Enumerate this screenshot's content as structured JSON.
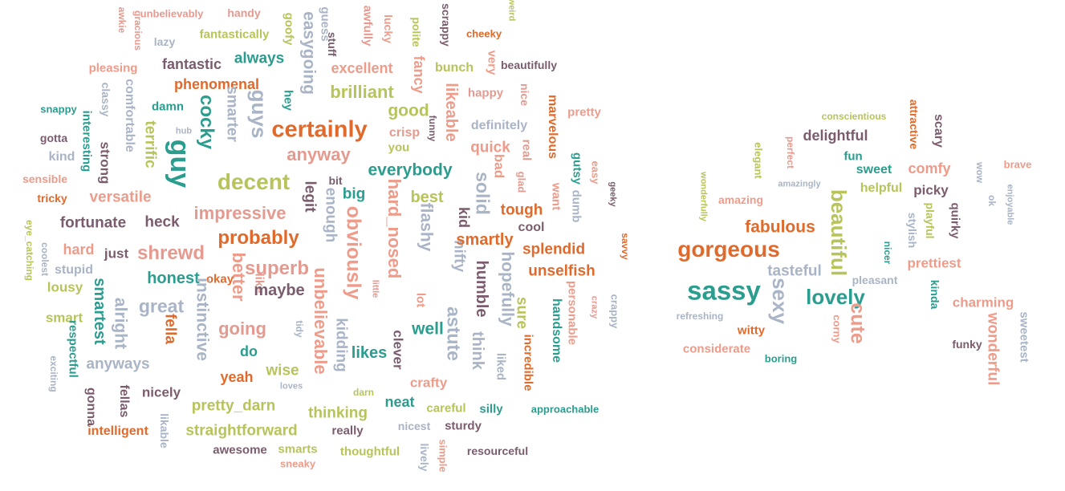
{
  "colors": {
    "teal": "#2a9d8f",
    "orange": "#e06a2c",
    "pink": "#e59a90",
    "olive": "#b8c45a",
    "plum": "#7a5c6e",
    "grey": "#a9b4c6",
    "salmon": "#ee9b8a"
  },
  "clouds": [
    {
      "name": "left-cloud",
      "words": [
        {
          "t": "awkie",
          "c": "pink"
        },
        {
          "t": "gracious",
          "c": "pink"
        },
        {
          "t": "unbelievably",
          "c": "pink"
        },
        {
          "t": "handy",
          "c": "pink"
        },
        {
          "t": "goofy",
          "c": "olive"
        },
        {
          "t": "guess",
          "c": "grey"
        },
        {
          "t": "awfully",
          "c": "pink"
        },
        {
          "t": "lucky",
          "c": "salmon"
        },
        {
          "t": "polite",
          "c": "olive"
        },
        {
          "t": "scrappy",
          "c": "plum"
        },
        {
          "t": "cheeky",
          "c": "orange"
        },
        {
          "t": "weird",
          "c": "olive"
        },
        {
          "t": "lazy",
          "c": "grey"
        },
        {
          "t": "fantastically",
          "c": "olive"
        },
        {
          "t": "easygoing",
          "c": "grey"
        },
        {
          "t": "stuff",
          "c": "plum"
        },
        {
          "t": "excellent",
          "c": "salmon"
        },
        {
          "t": "fancy",
          "c": "salmon"
        },
        {
          "t": "bunch",
          "c": "olive"
        },
        {
          "t": "very",
          "c": "salmon"
        },
        {
          "t": "beautifully",
          "c": "plum"
        },
        {
          "t": "pleasing",
          "c": "salmon"
        },
        {
          "t": "fantastic",
          "c": "plum"
        },
        {
          "t": "always",
          "c": "teal"
        },
        {
          "t": "phenomenal",
          "c": "orange"
        },
        {
          "t": "brilliant",
          "c": "olive"
        },
        {
          "t": "likeable",
          "c": "salmon"
        },
        {
          "t": "happy",
          "c": "pink"
        },
        {
          "t": "nice",
          "c": "pink"
        },
        {
          "t": "classy",
          "c": "grey"
        },
        {
          "t": "comfortable",
          "c": "grey"
        },
        {
          "t": "hey",
          "c": "teal"
        },
        {
          "t": "guys",
          "c": "grey"
        },
        {
          "t": "smarter",
          "c": "grey"
        },
        {
          "t": "cocky",
          "c": "teal"
        },
        {
          "t": "damn",
          "c": "teal"
        },
        {
          "t": "snappy",
          "c": "teal"
        },
        {
          "t": "interesting",
          "c": "teal"
        },
        {
          "t": "good",
          "c": "olive"
        },
        {
          "t": "marvelous",
          "c": "orange"
        },
        {
          "t": "pretty",
          "c": "salmon"
        },
        {
          "t": "certainly",
          "c": "orange"
        },
        {
          "t": "crisp",
          "c": "pink"
        },
        {
          "t": "funny",
          "c": "plum"
        },
        {
          "t": "definitely",
          "c": "grey"
        },
        {
          "t": "gotta",
          "c": "plum"
        },
        {
          "t": "terrific",
          "c": "olive"
        },
        {
          "t": "hub",
          "c": "grey"
        },
        {
          "t": "guy",
          "c": "teal"
        },
        {
          "t": "you",
          "c": "olive"
        },
        {
          "t": "quick",
          "c": "salmon"
        },
        {
          "t": "real",
          "c": "pink"
        },
        {
          "t": "gutsy",
          "c": "teal"
        },
        {
          "t": "easy",
          "c": "salmon"
        },
        {
          "t": "kind",
          "c": "grey"
        },
        {
          "t": "strong",
          "c": "plum"
        },
        {
          "t": "anyway",
          "c": "pink"
        },
        {
          "t": "bad",
          "c": "salmon"
        },
        {
          "t": "glad",
          "c": "pink"
        },
        {
          "t": "dumb",
          "c": "grey"
        },
        {
          "t": "sensible",
          "c": "salmon"
        },
        {
          "t": "decent",
          "c": "olive"
        },
        {
          "t": "bit",
          "c": "plum"
        },
        {
          "t": "everybody",
          "c": "teal"
        },
        {
          "t": "solid",
          "c": "grey"
        },
        {
          "t": "want",
          "c": "salmon"
        },
        {
          "t": "geeky",
          "c": "plum"
        },
        {
          "t": "tricky",
          "c": "orange"
        },
        {
          "t": "versatile",
          "c": "salmon"
        },
        {
          "t": "legit",
          "c": "plum"
        },
        {
          "t": "big",
          "c": "teal"
        },
        {
          "t": "best",
          "c": "olive"
        },
        {
          "t": "hard_nosed",
          "c": "salmon"
        },
        {
          "t": "kid",
          "c": "plum"
        },
        {
          "t": "tough",
          "c": "orange"
        },
        {
          "t": "impressive",
          "c": "pink"
        },
        {
          "t": "enough",
          "c": "grey"
        },
        {
          "t": "eye_catching",
          "c": "olive"
        },
        {
          "t": "fortunate",
          "c": "plum"
        },
        {
          "t": "heck",
          "c": "plum"
        },
        {
          "t": "obviously",
          "c": "salmon"
        },
        {
          "t": "flashy",
          "c": "grey"
        },
        {
          "t": "cool",
          "c": "plum"
        },
        {
          "t": "savvy",
          "c": "orange"
        },
        {
          "t": "coolest",
          "c": "grey"
        },
        {
          "t": "probably",
          "c": "orange"
        },
        {
          "t": "nifty",
          "c": "grey"
        },
        {
          "t": "smartly",
          "c": "orange"
        },
        {
          "t": "splendid",
          "c": "orange"
        },
        {
          "t": "hard",
          "c": "salmon"
        },
        {
          "t": "just",
          "c": "plum"
        },
        {
          "t": "shrewd",
          "c": "pink"
        },
        {
          "t": "superb",
          "c": "pink"
        },
        {
          "t": "humble",
          "c": "plum"
        },
        {
          "t": "hopefully",
          "c": "grey"
        },
        {
          "t": "unselfish",
          "c": "orange"
        },
        {
          "t": "stupid",
          "c": "grey"
        },
        {
          "t": "honest",
          "c": "teal"
        },
        {
          "t": "better",
          "c": "salmon"
        },
        {
          "t": "okay",
          "c": "orange"
        },
        {
          "t": "like",
          "c": "pink"
        },
        {
          "t": "maybe",
          "c": "plum"
        },
        {
          "t": "unbelievable",
          "c": "salmon"
        },
        {
          "t": "little",
          "c": "pink"
        },
        {
          "t": "lousy",
          "c": "olive"
        },
        {
          "t": "smartest",
          "c": "teal"
        },
        {
          "t": "instinctive",
          "c": "grey"
        },
        {
          "t": "lot",
          "c": "salmon"
        },
        {
          "t": "sure",
          "c": "olive"
        },
        {
          "t": "personable",
          "c": "salmon"
        },
        {
          "t": "crazy",
          "c": "pink"
        },
        {
          "t": "crappy",
          "c": "grey"
        },
        {
          "t": "alright",
          "c": "grey"
        },
        {
          "t": "great",
          "c": "grey"
        },
        {
          "t": "astute",
          "c": "grey"
        },
        {
          "t": "handsome",
          "c": "teal"
        },
        {
          "t": "smart",
          "c": "olive"
        },
        {
          "t": "respectful",
          "c": "teal"
        },
        {
          "t": "fella",
          "c": "orange"
        },
        {
          "t": "going",
          "c": "pink"
        },
        {
          "t": "tidy",
          "c": "grey"
        },
        {
          "t": "kidding",
          "c": "grey"
        },
        {
          "t": "well",
          "c": "teal"
        },
        {
          "t": "think",
          "c": "grey"
        },
        {
          "t": "incredible",
          "c": "orange"
        },
        {
          "t": "do",
          "c": "teal"
        },
        {
          "t": "likes",
          "c": "teal"
        },
        {
          "t": "clever",
          "c": "plum"
        },
        {
          "t": "liked",
          "c": "grey"
        },
        {
          "t": "anyways",
          "c": "grey"
        },
        {
          "t": "exciting",
          "c": "grey"
        },
        {
          "t": "yeah",
          "c": "orange"
        },
        {
          "t": "wise",
          "c": "olive"
        },
        {
          "t": "crafty",
          "c": "salmon"
        },
        {
          "t": "loves",
          "c": "grey"
        },
        {
          "t": "darn",
          "c": "olive"
        },
        {
          "t": "neat",
          "c": "teal"
        },
        {
          "t": "nicely",
          "c": "plum"
        },
        {
          "t": "gonna",
          "c": "plum"
        },
        {
          "t": "fellas",
          "c": "plum"
        },
        {
          "t": "pretty_darn",
          "c": "olive"
        },
        {
          "t": "careful",
          "c": "olive"
        },
        {
          "t": "silly",
          "c": "teal"
        },
        {
          "t": "approachable",
          "c": "teal"
        },
        {
          "t": "thinking",
          "c": "olive"
        },
        {
          "t": "likable",
          "c": "grey"
        },
        {
          "t": "intelligent",
          "c": "orange"
        },
        {
          "t": "straightforward",
          "c": "olive"
        },
        {
          "t": "nicest",
          "c": "grey"
        },
        {
          "t": "sturdy",
          "c": "plum"
        },
        {
          "t": "really",
          "c": "plum"
        },
        {
          "t": "awesome",
          "c": "plum"
        },
        {
          "t": "smarts",
          "c": "olive"
        },
        {
          "t": "thoughtful",
          "c": "olive"
        },
        {
          "t": "lively",
          "c": "grey"
        },
        {
          "t": "simple",
          "c": "salmon"
        },
        {
          "t": "resourceful",
          "c": "plum"
        },
        {
          "t": "sneaky",
          "c": "salmon"
        }
      ]
    },
    {
      "name": "right-cloud",
      "words": [
        {
          "t": "conscientious",
          "c": "olive"
        },
        {
          "t": "attractive",
          "c": "orange"
        },
        {
          "t": "scary",
          "c": "plum"
        },
        {
          "t": "elegant",
          "c": "olive"
        },
        {
          "t": "perfect",
          "c": "pink"
        },
        {
          "t": "delightful",
          "c": "plum"
        },
        {
          "t": "fun",
          "c": "teal"
        },
        {
          "t": "sweet",
          "c": "teal"
        },
        {
          "t": "comfy",
          "c": "salmon"
        },
        {
          "t": "wow",
          "c": "grey"
        },
        {
          "t": "brave",
          "c": "salmon"
        },
        {
          "t": "wonderfully",
          "c": "olive"
        },
        {
          "t": "amazing",
          "c": "salmon"
        },
        {
          "t": "amazingly",
          "c": "grey"
        },
        {
          "t": "helpful",
          "c": "olive"
        },
        {
          "t": "picky",
          "c": "plum"
        },
        {
          "t": "ok",
          "c": "grey"
        },
        {
          "t": "enjoyable",
          "c": "grey"
        },
        {
          "t": "beautiful",
          "c": "olive"
        },
        {
          "t": "playful",
          "c": "olive"
        },
        {
          "t": "quirky",
          "c": "plum"
        },
        {
          "t": "fabulous",
          "c": "orange"
        },
        {
          "t": "stylish",
          "c": "grey"
        },
        {
          "t": "gorgeous",
          "c": "orange"
        },
        {
          "t": "nicer",
          "c": "teal"
        },
        {
          "t": "prettiest",
          "c": "salmon"
        },
        {
          "t": "tasteful",
          "c": "grey"
        },
        {
          "t": "pleasant",
          "c": "grey"
        },
        {
          "t": "kinda",
          "c": "teal"
        },
        {
          "t": "sassy",
          "c": "teal"
        },
        {
          "t": "sexy",
          "c": "grey"
        },
        {
          "t": "lovely",
          "c": "teal"
        },
        {
          "t": "cute",
          "c": "salmon"
        },
        {
          "t": "charming",
          "c": "salmon"
        },
        {
          "t": "refreshing",
          "c": "grey"
        },
        {
          "t": "witty",
          "c": "orange"
        },
        {
          "t": "corny",
          "c": "salmon"
        },
        {
          "t": "wonderful",
          "c": "salmon"
        },
        {
          "t": "sweetest",
          "c": "grey"
        },
        {
          "t": "funky",
          "c": "plum"
        },
        {
          "t": "considerate",
          "c": "salmon"
        },
        {
          "t": "boring",
          "c": "teal"
        }
      ]
    }
  ]
}
